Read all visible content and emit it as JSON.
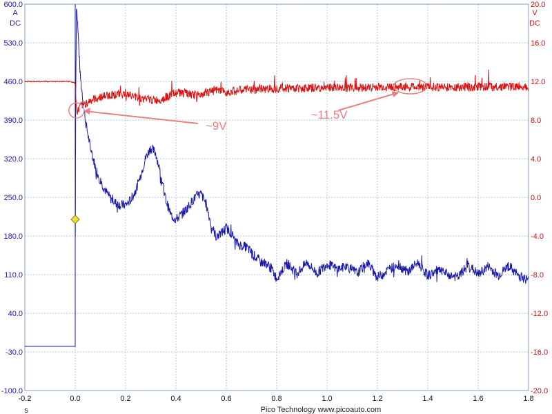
{
  "chart_data": {
    "type": "line",
    "footer": "Pico Technology   www.picoauto.com",
    "grid": true,
    "x_axis": {
      "unit": "s",
      "range": [
        -0.2,
        1.8
      ],
      "ticks": [
        "-0.2",
        "0.0",
        "0.2",
        "0.4",
        "0.6",
        "0.8",
        "1.0",
        "1.2",
        "1.4",
        "1.6",
        "1.8"
      ]
    },
    "y_left": {
      "unit": "A",
      "coupling": "DC",
      "range": [
        -100,
        600
      ],
      "ticks": [
        "600.0",
        "530.0",
        "460.0",
        "390.0",
        "320.0",
        "250.0",
        "180.0",
        "110.0",
        "40.0",
        "-30.0",
        "-100.0"
      ],
      "color": "#1a1aa8"
    },
    "y_right": {
      "unit": "V",
      "coupling": "DC",
      "range": [
        -20,
        20
      ],
      "ticks": [
        "20.0",
        "16.0",
        "12.0",
        "8.0",
        "4.0",
        "0.0",
        "-4.0",
        "-8.0",
        "-12.0",
        "-16.0",
        "-20.0"
      ],
      "color": "#dd1111"
    },
    "series": [
      {
        "axis": "left",
        "color": "#1a1aa8",
        "x": [
          -0.2,
          0.0,
          0.001,
          0.005,
          0.01,
          0.02,
          0.04,
          0.06,
          0.08,
          0.1,
          0.12,
          0.14,
          0.16,
          0.18,
          0.2,
          0.22,
          0.24,
          0.26,
          0.28,
          0.3,
          0.32,
          0.34,
          0.36,
          0.38,
          0.4,
          0.42,
          0.44,
          0.46,
          0.48,
          0.5,
          0.52,
          0.54,
          0.56,
          0.58,
          0.6,
          0.62,
          0.64,
          0.66,
          0.68,
          0.7,
          0.72,
          0.74,
          0.76,
          0.78,
          0.8,
          0.84,
          0.88,
          0.92,
          0.96,
          1.0,
          1.04,
          1.08,
          1.12,
          1.16,
          1.2,
          1.24,
          1.28,
          1.32,
          1.36,
          1.4,
          1.44,
          1.48,
          1.52,
          1.56,
          1.6,
          1.64,
          1.68,
          1.72,
          1.76,
          1.8
        ],
        "y": [
          -20,
          -20,
          380,
          600,
          560,
          470,
          390,
          340,
          305,
          280,
          262,
          248,
          240,
          236,
          236,
          245,
          262,
          290,
          322,
          340,
          330,
          290,
          245,
          218,
          210,
          218,
          228,
          240,
          252,
          256,
          238,
          200,
          178,
          185,
          195,
          185,
          168,
          162,
          160,
          150,
          140,
          132,
          130,
          120,
          103,
          130,
          112,
          132,
          112,
          130,
          120,
          125,
          112,
          132,
          105,
          118,
          128,
          115,
          132,
          108,
          118,
          110,
          105,
          128,
          110,
          125,
          108,
          126,
          108,
          100
        ]
      },
      {
        "axis": "right",
        "color": "#dd1111",
        "x": [
          -0.2,
          -0.02,
          0.0,
          0.005,
          0.01,
          0.02,
          0.04,
          0.06,
          0.08,
          0.1,
          0.12,
          0.14,
          0.16,
          0.18,
          0.2,
          0.22,
          0.24,
          0.26,
          0.28,
          0.3,
          0.32,
          0.34,
          0.36,
          0.38,
          0.4,
          0.42,
          0.44,
          0.46,
          0.48,
          0.5,
          0.52,
          0.54,
          0.56,
          0.58,
          0.6,
          0.64,
          0.68,
          0.72,
          0.76,
          0.8,
          0.9,
          1.0,
          1.1,
          1.2,
          1.3,
          1.4,
          1.5,
          1.6,
          1.7,
          1.8
        ],
        "y": [
          12.0,
          12.0,
          11.8,
          9.0,
          8.9,
          9.4,
          9.7,
          10.0,
          10.2,
          10.4,
          10.5,
          10.6,
          10.65,
          10.7,
          10.65,
          10.55,
          10.4,
          10.25,
          10.15,
          10.1,
          10.05,
          10.15,
          10.35,
          10.6,
          10.8,
          10.85,
          10.75,
          10.6,
          10.55,
          10.65,
          10.85,
          11.0,
          11.05,
          10.95,
          10.9,
          11.05,
          11.15,
          11.2,
          11.25,
          11.3,
          11.3,
          11.35,
          11.35,
          11.4,
          11.45,
          11.45,
          11.4,
          11.45,
          11.45,
          11.5
        ]
      }
    ],
    "annotations": [
      {
        "text": "~9V",
        "at": {
          "x": 0.005,
          "y": 9.0
        }
      },
      {
        "text": "~11.5V",
        "at": {
          "x": 1.33,
          "y": 11.5
        }
      }
    ],
    "trigger_marker": {
      "x": 0.0,
      "y": 210
    }
  }
}
